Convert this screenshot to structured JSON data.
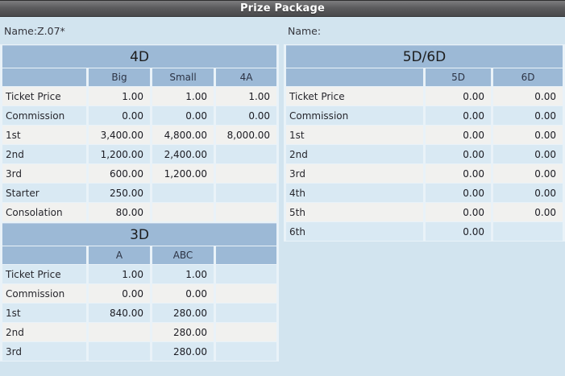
{
  "window": {
    "title": "Prize Package"
  },
  "left_panel": {
    "name_label": "Name:Z.07*",
    "tables": [
      {
        "title": "4D",
        "columns": [
          "",
          "Big",
          "Small",
          "4A"
        ],
        "rows": [
          {
            "label": "Ticket Price",
            "values": [
              "1.00",
              "1.00",
              "1.00"
            ]
          },
          {
            "label": "Commission",
            "values": [
              "0.00",
              "0.00",
              "0.00"
            ]
          },
          {
            "label": "1st",
            "values": [
              "3,400.00",
              "4,800.00",
              "8,000.00"
            ]
          },
          {
            "label": "2nd",
            "values": [
              "1,200.00",
              "2,400.00",
              ""
            ]
          },
          {
            "label": "3rd",
            "values": [
              "600.00",
              "1,200.00",
              ""
            ]
          },
          {
            "label": "Starter",
            "values": [
              "250.00",
              "",
              ""
            ]
          },
          {
            "label": "Consolation",
            "values": [
              "80.00",
              "",
              ""
            ]
          }
        ]
      },
      {
        "title": "3D",
        "columns": [
          "",
          "A",
          "ABC",
          ""
        ],
        "rows": [
          {
            "label": "Ticket Price",
            "values": [
              "1.00",
              "1.00",
              ""
            ]
          },
          {
            "label": "Commission",
            "values": [
              "0.00",
              "0.00",
              ""
            ]
          },
          {
            "label": "1st",
            "values": [
              "840.00",
              "280.00",
              ""
            ]
          },
          {
            "label": "2nd",
            "values": [
              "",
              "280.00",
              ""
            ]
          },
          {
            "label": "3rd",
            "values": [
              "",
              "280.00",
              ""
            ]
          }
        ]
      }
    ]
  },
  "right_panel": {
    "name_label": "Name:",
    "tables": [
      {
        "title": "5D/6D",
        "columns": [
          "",
          "5D",
          "6D"
        ],
        "rows": [
          {
            "label": "Ticket Price",
            "values": [
              "0.00",
              "0.00"
            ]
          },
          {
            "label": "Commission",
            "values": [
              "0.00",
              "0.00"
            ]
          },
          {
            "label": "1st",
            "values": [
              "0.00",
              "0.00"
            ]
          },
          {
            "label": "2nd",
            "values": [
              "0.00",
              "0.00"
            ]
          },
          {
            "label": "3rd",
            "values": [
              "0.00",
              "0.00"
            ]
          },
          {
            "label": "4th",
            "values": [
              "0.00",
              "0.00"
            ]
          },
          {
            "label": "5th",
            "values": [
              "0.00",
              "0.00"
            ]
          },
          {
            "label": "6th",
            "values": [
              "0.00",
              ""
            ]
          }
        ]
      }
    ]
  },
  "colors": {
    "background": "#d2e4ef",
    "title-bar-top": "#7d7d7f",
    "title-bar-bottom": "#49494b",
    "header-band": "#9cb9d6",
    "row-gray": "#f1f1ef",
    "row-blue": "#d9e9f3",
    "separator": "#e9f2f8",
    "text": "#1b1b22"
  }
}
